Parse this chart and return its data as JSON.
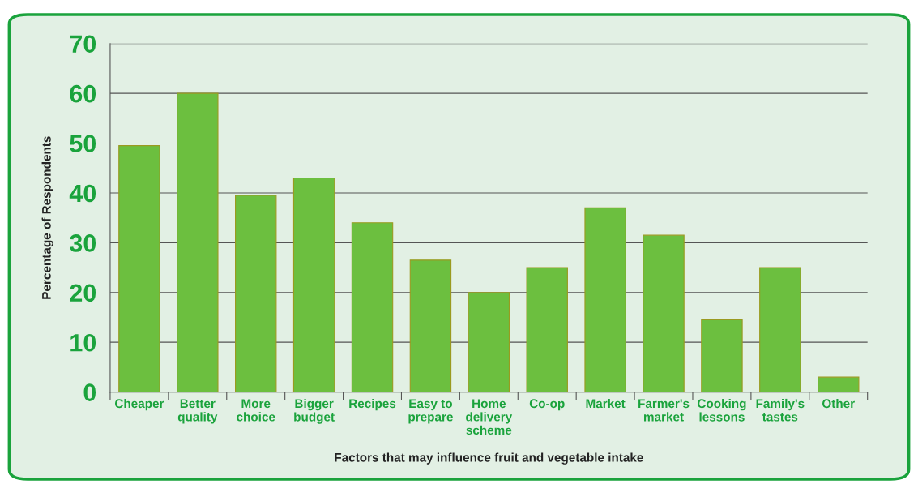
{
  "chart_data": {
    "type": "bar",
    "xlabel": "Factors that may influence fruit and vegetable intake",
    "ylabel": "Percentage of Respondents",
    "categories": [
      "Cheaper",
      "Better\nquality",
      "More\nchoice",
      "Bigger\nbudget",
      "Recipes",
      "Easy to\nprepare",
      "Home\ndelivery\nscheme",
      "Co-op",
      "Market",
      "Farmer's\nmarket",
      "Cooking\nlessons",
      "Family's\ntastes",
      "Other"
    ],
    "values": [
      49.5,
      60,
      39.5,
      43,
      34,
      26.5,
      20,
      25,
      37,
      31.5,
      14.5,
      25,
      3
    ],
    "color": "#6cbf3f",
    "ylim": [
      0,
      70
    ],
    "yticks": [
      0,
      10,
      20,
      30,
      40,
      50,
      60,
      70
    ],
    "grid": "y"
  }
}
